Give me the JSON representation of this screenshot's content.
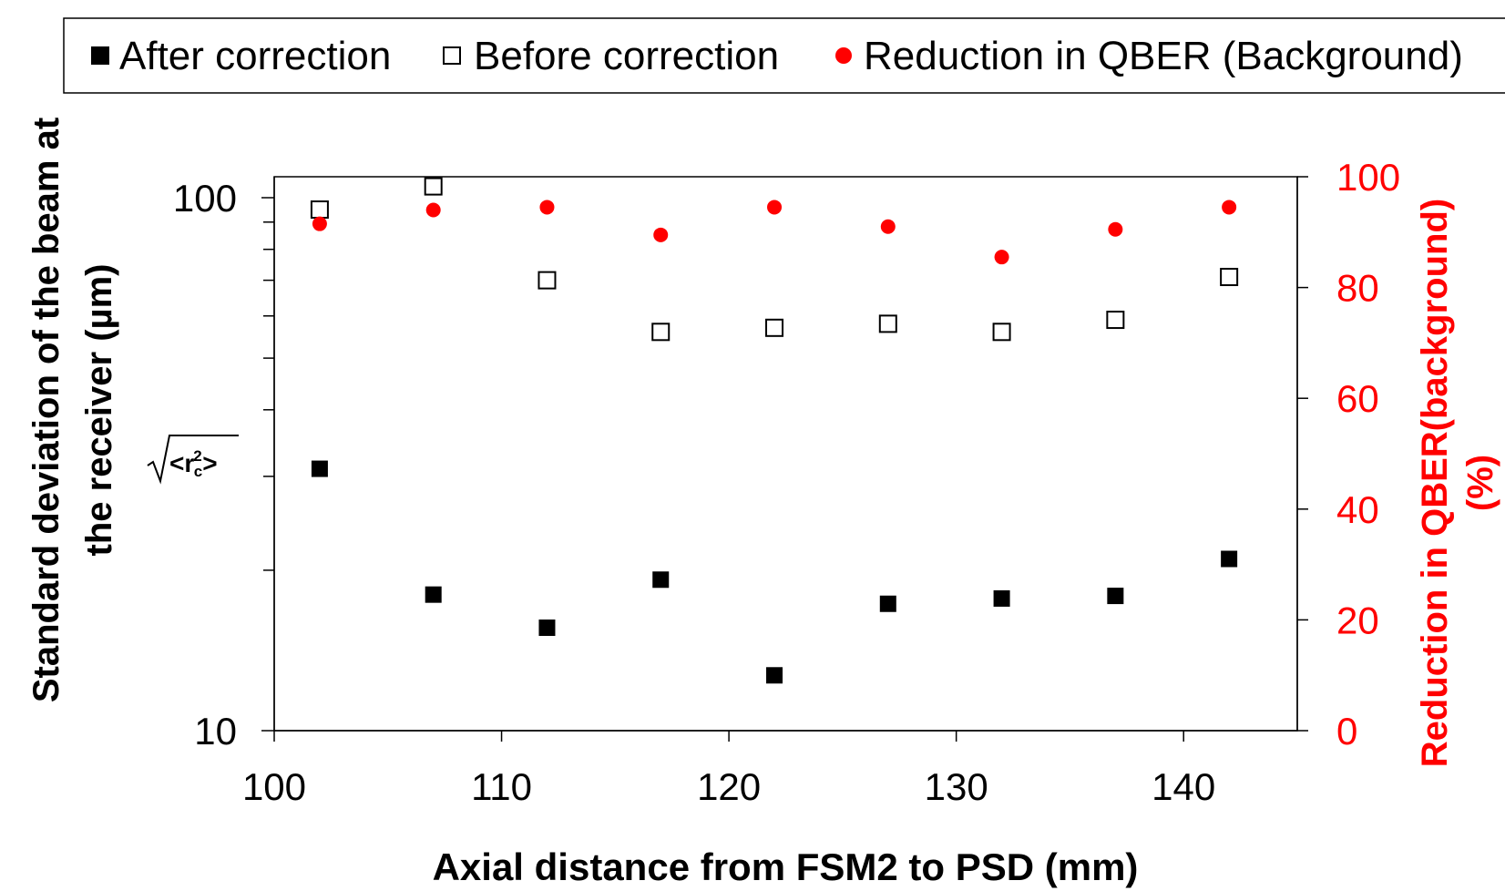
{
  "chart_data": {
    "type": "scatter",
    "xlabel": "Axial distance from FSM2  to PSD (mm)",
    "ylabel_left_line1": "Standard deviation of the beam at",
    "ylabel_left_line2": "the receiver (µm)",
    "ylabel_right_line1": "Reduction in QBER(background)",
    "ylabel_right_line2": "(%)",
    "formula_label": "<r",
    "formula_sup": "2",
    "formula_sub": "c",
    "formula_tail": ">",
    "xlim": [
      100,
      145
    ],
    "x_ticks": [
      100,
      110,
      120,
      130,
      140
    ],
    "y_left_scale": "log",
    "y_left_lim": [
      10,
      100
    ],
    "y_left_tick_labels": [
      "100",
      "10"
    ],
    "y_right_lim": [
      0,
      100
    ],
    "y_right_ticks": [
      0,
      20,
      40,
      60,
      80,
      100
    ],
    "grid": false,
    "legend_position": "top",
    "x": [
      102,
      107,
      112,
      117,
      122,
      127,
      132,
      137,
      142
    ],
    "series": [
      {
        "name": "After correction",
        "axis": "left",
        "marker": "filled-square",
        "color": "#000000",
        "values": [
          31,
          18,
          15.6,
          19.2,
          12.7,
          17.3,
          17.7,
          17.9,
          21
        ]
      },
      {
        "name": "Before correction",
        "axis": "left",
        "marker": "open-square",
        "color": "#000000",
        "values": [
          95,
          105,
          70,
          56,
          57,
          58,
          56,
          59,
          71
        ]
      },
      {
        "name": "Reduction in QBER (Background)",
        "axis": "right",
        "marker": "dot",
        "color": "#ff0000",
        "values": [
          91.5,
          94,
          94.5,
          89.5,
          94.5,
          91,
          85.5,
          90.5,
          94.5
        ]
      }
    ]
  },
  "colors": {
    "right_axis": "#ff0000",
    "ink": "#000000"
  }
}
